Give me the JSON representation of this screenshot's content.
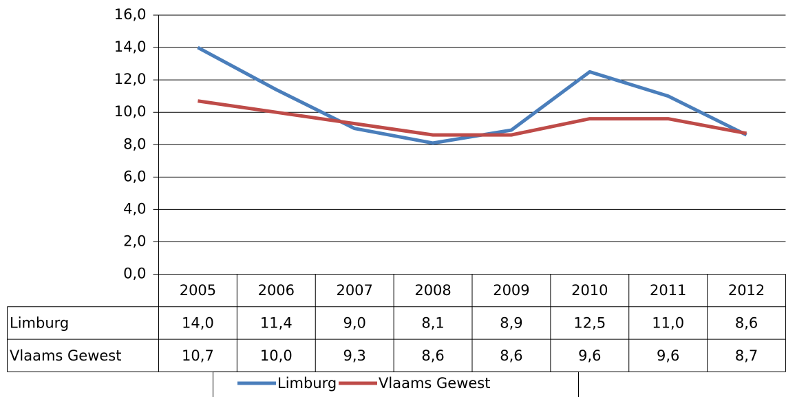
{
  "chart_data": {
    "type": "line",
    "categories": [
      "2005",
      "2006",
      "2007",
      "2008",
      "2009",
      "2010",
      "2011",
      "2012"
    ],
    "series": [
      {
        "name": "Limburg",
        "color": "#4a7ebb",
        "values": [
          14.0,
          11.4,
          9.0,
          8.1,
          8.9,
          12.5,
          11.0,
          8.6
        ],
        "value_labels": [
          "14,0",
          "11,4",
          "9,0",
          "8,1",
          "8,9",
          "12,5",
          "11,0",
          "8,6"
        ]
      },
      {
        "name": "Vlaams Gewest",
        "color": "#be4b48",
        "values": [
          10.7,
          10.0,
          9.3,
          8.6,
          8.6,
          9.6,
          9.6,
          8.7
        ],
        "value_labels": [
          "10,7",
          "10,0",
          "9,3",
          "8,6",
          "8,6",
          "9,6",
          "9,6",
          "8,7"
        ]
      }
    ],
    "ylim": [
      0,
      16
    ],
    "yticks": [
      {
        "value": 0,
        "label": "0,0"
      },
      {
        "value": 2,
        "label": "2,0"
      },
      {
        "value": 4,
        "label": "4,0"
      },
      {
        "value": 6,
        "label": "6,0"
      },
      {
        "value": 8,
        "label": "8,0"
      },
      {
        "value": 10,
        "label": "10,0"
      },
      {
        "value": 12,
        "label": "12,0"
      },
      {
        "value": 14,
        "label": "14,0"
      },
      {
        "value": 16,
        "label": "16,0"
      }
    ],
    "grid": true,
    "legend": "bottom"
  }
}
